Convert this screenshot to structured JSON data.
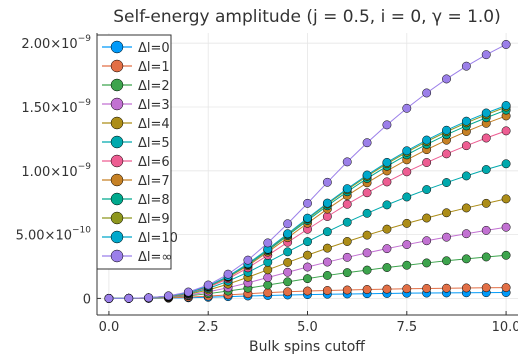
{
  "chart_data": {
    "type": "line",
    "title": "Self-energy amplitude (j = 0.5, i = 0, γ = 1.0)",
    "xlabel": "Bulk spins cutoff",
    "ylabel": "",
    "xlim": [
      -0.3,
      10.3
    ],
    "ylim": [
      -1.3e-10,
      2.08e-09
    ],
    "grid": true,
    "legend": "top-left",
    "xticks": [
      {
        "value": 0,
        "label": "0.0"
      },
      {
        "value": 2.5,
        "label": "2.5"
      },
      {
        "value": 5,
        "label": "5.0"
      },
      {
        "value": 7.5,
        "label": "7.5"
      },
      {
        "value": 10,
        "label": "10.0"
      }
    ],
    "yticks": [
      {
        "value": 0,
        "label": "0",
        "exp": ""
      },
      {
        "value": 5e-10,
        "label": "5.00×10",
        "exp": "−10"
      },
      {
        "value": 1e-09,
        "label": "1.00×10",
        "exp": "−9"
      },
      {
        "value": 1.5e-09,
        "label": "1.50×10",
        "exp": "−9"
      },
      {
        "value": 2e-09,
        "label": "2.00×10",
        "exp": "−9"
      }
    ],
    "x": [
      0,
      0.5,
      1,
      1.5,
      2,
      2.5,
      3,
      3.5,
      4,
      4.5,
      5,
      5.5,
      6,
      6.5,
      7,
      7.5,
      8,
      8.5,
      9,
      9.5,
      10
    ],
    "series": [
      {
        "name": "Δl=0",
        "color": "#009af9",
        "values": [
          0,
          1e-13,
          5e-13,
          2e-12,
          5e-12,
          9e-12,
          1.4e-11,
          1.9e-11,
          2.3e-11,
          2.7e-11,
          3e-11,
          3.3e-11,
          3.5e-11,
          3.7e-11,
          3.9e-11,
          4.1e-11,
          4.2e-11,
          4.3e-11,
          4.4e-11,
          4.5e-11,
          4.6e-11
        ]
      },
      {
        "name": "Δl=1",
        "color": "#e26f46",
        "values": [
          0,
          2e-13,
          1e-12,
          4e-12,
          1e-11,
          1.8e-11,
          2.8e-11,
          3.7e-11,
          4.5e-11,
          5.2e-11,
          5.8e-11,
          6.2e-11,
          6.6e-11,
          7e-11,
          7.3e-11,
          7.6e-11,
          7.8e-11,
          8e-11,
          8.2e-11,
          8.4e-11,
          8.5e-11
        ]
      },
      {
        "name": "Δl=2",
        "color": "#3da44d",
        "values": [
          0,
          5e-13,
          2e-12,
          8e-12,
          2e-11,
          3.7e-11,
          5.8e-11,
          8e-11,
          1.05e-10,
          1.3e-10,
          1.55e-10,
          1.8e-10,
          2.02e-10,
          2.22e-10,
          2.42e-10,
          2.6e-10,
          2.78e-10,
          2.95e-10,
          3.1e-10,
          3.25e-10,
          3.38e-10
        ]
      },
      {
        "name": "Δl=3",
        "color": "#c271d2",
        "values": [
          0,
          6e-13,
          3e-12,
          1.1e-11,
          2.6e-11,
          5.1e-11,
          8.4e-11,
          1.22e-10,
          1.64e-10,
          2.05e-10,
          2.46e-10,
          2.85e-10,
          3.22e-10,
          3.57e-10,
          3.9e-10,
          4.22e-10,
          4.52e-10,
          4.8e-10,
          5.07e-10,
          5.33e-10,
          5.58e-10
        ]
      },
      {
        "name": "Δl=4",
        "color": "#ac8d18",
        "values": [
          0,
          7e-13,
          3.5e-12,
          1.3e-11,
          3.3e-11,
          6.6e-11,
          1.12e-10,
          1.66e-10,
          2.24e-10,
          2.82e-10,
          3.39e-10,
          3.94e-10,
          4.46e-10,
          4.96e-10,
          5.43e-10,
          5.88e-10,
          6.3e-10,
          6.71e-10,
          7.09e-10,
          7.45e-10,
          7.8e-10
        ]
      },
      {
        "name": "Δl=5",
        "color": "#00a9ad",
        "values": [
          0,
          8e-13,
          4e-12,
          1.5e-11,
          3.8e-11,
          7.8e-11,
          1.35e-10,
          2.05e-10,
          2.84e-10,
          3.65e-10,
          4.45e-10,
          5.23e-10,
          5.97e-10,
          6.67e-10,
          7.33e-10,
          7.95e-10,
          8.53e-10,
          9.08e-10,
          9.6e-10,
          1.01e-09,
          1.055e-09
        ]
      },
      {
        "name": "Δl=6",
        "color": "#ed5d92",
        "values": [
          0,
          8e-13,
          4.3e-12,
          1.6e-11,
          4.2e-11,
          8.7e-11,
          1.54e-10,
          2.4e-10,
          3.38e-10,
          4.4e-10,
          5.42e-10,
          6.42e-10,
          7.38e-10,
          8.28e-10,
          9.13e-10,
          9.92e-10,
          1.065e-09,
          1.133e-09,
          1.197e-09,
          1.257e-09,
          1.313e-09
        ]
      },
      {
        "name": "Δl=7",
        "color": "#c68125",
        "values": [
          0,
          9e-13,
          4.5e-12,
          1.7e-11,
          4.4e-11,
          9.2e-11,
          1.64e-10,
          2.56e-10,
          3.63e-10,
          4.76e-10,
          5.89e-10,
          7e-10,
          8.06e-10,
          9.06e-10,
          9.99e-10,
          1.086e-09,
          1.166e-09,
          1.24e-09,
          1.308e-09,
          1.372e-09,
          1.43e-09
        ]
      },
      {
        "name": "Δl=8",
        "color": "#00a98d",
        "values": [
          0,
          9e-13,
          4.6e-12,
          1.75e-11,
          4.5e-11,
          9.5e-11,
          1.69e-10,
          2.64e-10,
          3.75e-10,
          4.93e-10,
          6.11e-10,
          7.26e-10,
          8.36e-10,
          9.4e-10,
          1.036e-09,
          1.125e-09,
          1.207e-09,
          1.283e-09,
          1.352e-09,
          1.416e-09,
          1.476e-09
        ]
      },
      {
        "name": "Δl=9",
        "color": "#8e971e",
        "values": [
          0,
          9e-13,
          4.7e-12,
          1.8e-11,
          4.6e-11,
          9.7e-11,
          1.72e-10,
          2.69e-10,
          3.82e-10,
          5.02e-10,
          6.23e-10,
          7.4e-10,
          8.52e-10,
          9.58e-10,
          1.056e-09,
          1.146e-09,
          1.229e-09,
          1.306e-09,
          1.376e-09,
          1.44e-09,
          1.5e-09
        ]
      },
      {
        "name": "Δl=10",
        "color": "#00a8cb",
        "values": [
          0,
          9e-13,
          4.7e-12,
          1.8e-11,
          4.65e-11,
          9.8e-11,
          1.74e-10,
          2.72e-10,
          3.86e-10,
          5.07e-10,
          6.29e-10,
          7.47e-10,
          8.6e-10,
          9.67e-10,
          1.066e-09,
          1.157e-09,
          1.241e-09,
          1.318e-09,
          1.389e-09,
          1.453e-09,
          1.512e-09
        ]
      },
      {
        "name": "Δl=∞",
        "color": "#9b7fe9",
        "values": [
          0,
          1e-12,
          5e-12,
          2e-11,
          5e-11,
          1.05e-10,
          1.9e-10,
          3e-10,
          4.35e-10,
          5.85e-10,
          7.45e-10,
          9.1e-10,
          1.07e-09,
          1.22e-09,
          1.36e-09,
          1.49e-09,
          1.61e-09,
          1.72e-09,
          1.82e-09,
          1.91e-09,
          1.99e-09
        ]
      }
    ]
  }
}
